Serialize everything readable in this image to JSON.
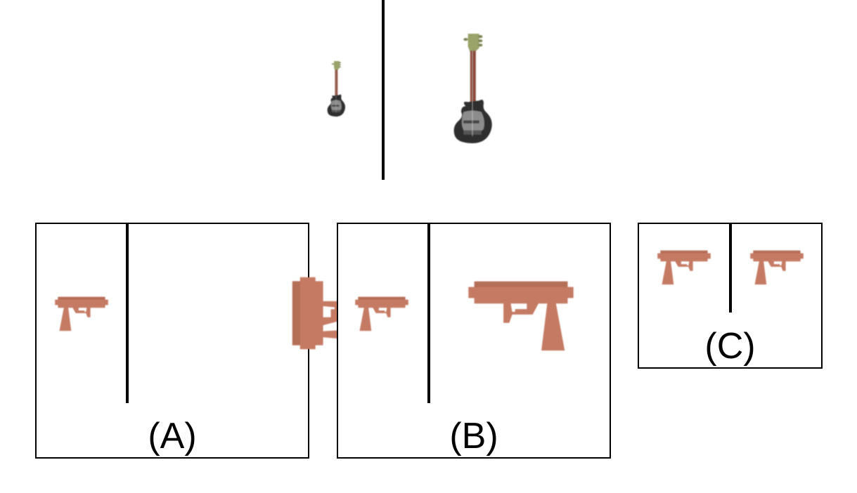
{
  "prompt": {
    "left_object": "guitar-small",
    "right_object": "guitar-large"
  },
  "options": [
    {
      "label": "(A)",
      "left_object": "pistol-small",
      "right_object": "pistol-large-rotated"
    },
    {
      "label": "(B)",
      "left_object": "pistol-small",
      "right_object": "pistol-large-mirrored"
    },
    {
      "label": "(C)",
      "left_object": "pistol-small",
      "right_object": "pistol-small"
    }
  ],
  "colors": {
    "pistol": "#c47a63",
    "guitar_body": "#3a3a3a",
    "guitar_neck": "#8a4a3a",
    "guitar_head": "#9aa36a"
  }
}
